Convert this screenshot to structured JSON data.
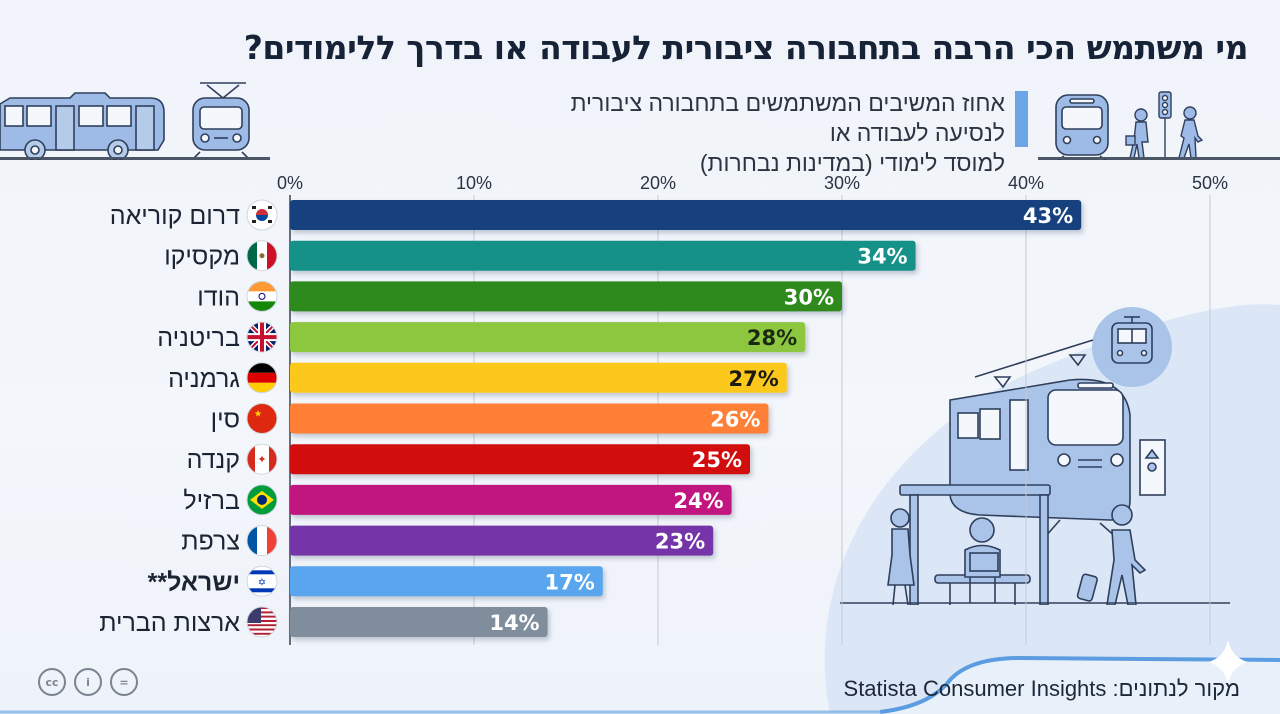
{
  "header": {
    "title": "מי משתמש הכי הרבה בתחבורה ציבורית לעבודה או בדרך ללימודים?",
    "subtitle_line1": "אחוז המשיבים המשתמשים בתחבורה ציבורית לנסיעה לעבודה או",
    "subtitle_line2": "למוסד לימודי (במדינות נבחרות)"
  },
  "footer": {
    "source": "מקור לנתונים: Statista Consumer Insights",
    "license_icons": [
      "cc-icon",
      "attribution-icon",
      "no-derivatives-icon"
    ],
    "license_icon_glyphs": [
      "cc",
      "i",
      "="
    ]
  },
  "colors": {
    "accent": "#6aa6e6",
    "title": "#162235",
    "illustration": "#a9c4e8",
    "illustration_stroke": "#2f3f5c"
  },
  "chart_data": {
    "type": "bar",
    "orientation": "horizontal",
    "title": "מי משתמש הכי הרבה בתחבורה ציבורית לעבודה או בדרך ללימודים?",
    "subtitle": "אחוז המשיבים המשתמשים בתחבורה ציבורית לנסיעה לעבודה או למוסד לימודי (במדינות נבחרות)",
    "xlabel": "",
    "ylabel": "",
    "xlim": [
      0,
      50
    ],
    "x_ticks": [
      0,
      10,
      20,
      30,
      40,
      50
    ],
    "x_tick_labels": [
      "0%",
      "10%",
      "20%",
      "30%",
      "40%",
      "50%"
    ],
    "x_axis_position": "top",
    "grid": true,
    "categories": [
      "דרום קוריאה",
      "מקסיקו",
      "הודו",
      "בריטניה",
      "גרמניה",
      "סין",
      "קנדה",
      "ברזיל",
      "צרפת",
      "ישראל**",
      "ארצות הברית"
    ],
    "values": [
      43,
      34,
      30,
      28,
      27,
      26,
      25,
      24,
      23,
      17,
      14
    ],
    "value_labels": [
      "43%",
      "34%",
      "30%",
      "28%",
      "27%",
      "26%",
      "25%",
      "24%",
      "23%",
      "17%",
      "14%"
    ],
    "bar_colors": [
      "#173f7e",
      "#17918a",
      "#2d8a1c",
      "#8dc73f",
      "#fcc81a",
      "#fe7f34",
      "#d10e10",
      "#c11380",
      "#7434a8",
      "#5aa6ee",
      "#7f8d9c"
    ],
    "label_colors": [
      "#ffffff",
      "#ffffff",
      "#ffffff",
      "#1a2a10",
      "#1a1a10",
      "#ffffff",
      "#ffffff",
      "#ffffff",
      "#ffffff",
      "#ffffff",
      "#ffffff"
    ],
    "flags": [
      "south-korea-flag-icon",
      "mexico-flag-icon",
      "india-flag-icon",
      "uk-flag-icon",
      "germany-flag-icon",
      "china-flag-icon",
      "canada-flag-icon",
      "brazil-flag-icon",
      "france-flag-icon",
      "israel-flag-icon",
      "usa-flag-icon"
    ],
    "highlighted_category": "ישראל**",
    "unit": "%"
  }
}
